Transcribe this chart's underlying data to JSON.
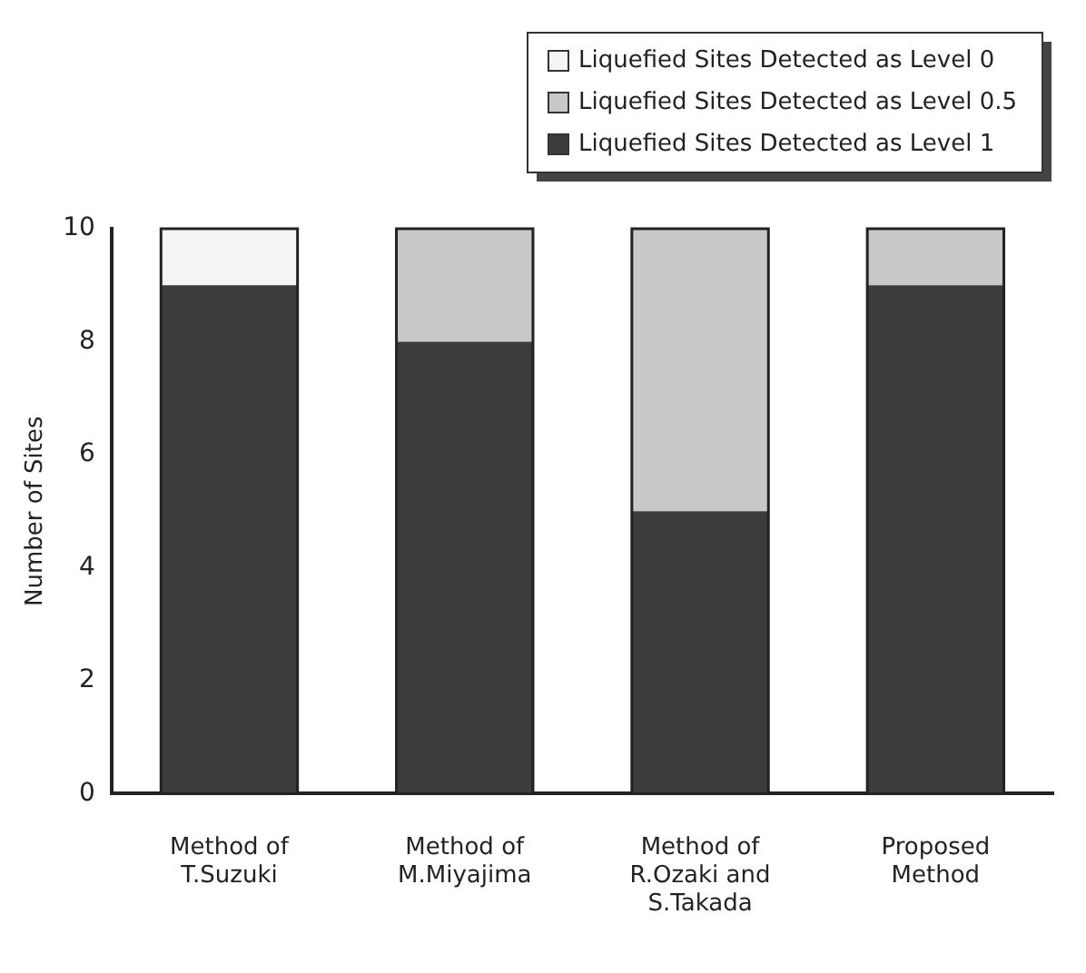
{
  "chart_data": {
    "type": "bar",
    "stacked": true,
    "ylabel": "Number of Sites",
    "categories": [
      "Method of\nT.Suzuki",
      "Method of\nM.Miyajima",
      "Method of\nR.Ozaki and\nS.Takada",
      "Proposed\nMethod"
    ],
    "series": [
      {
        "name": "Liquefied Sites Detected as Level 1",
        "color": "#3c3c3c",
        "values": [
          9,
          8,
          5,
          9
        ]
      },
      {
        "name": "Liquefied Sites Detected as Level 0.5",
        "color": "#c8c8c8",
        "values": [
          0,
          2,
          5,
          1
        ]
      },
      {
        "name": "Liquefied Sites Detected as Level 0",
        "color": "#f5f5f5",
        "values": [
          1,
          0,
          0,
          0
        ]
      }
    ],
    "ylim": [
      0,
      10
    ],
    "yticks": [
      0,
      2,
      4,
      6,
      8,
      10
    ],
    "grid": false,
    "legend": "top right"
  }
}
